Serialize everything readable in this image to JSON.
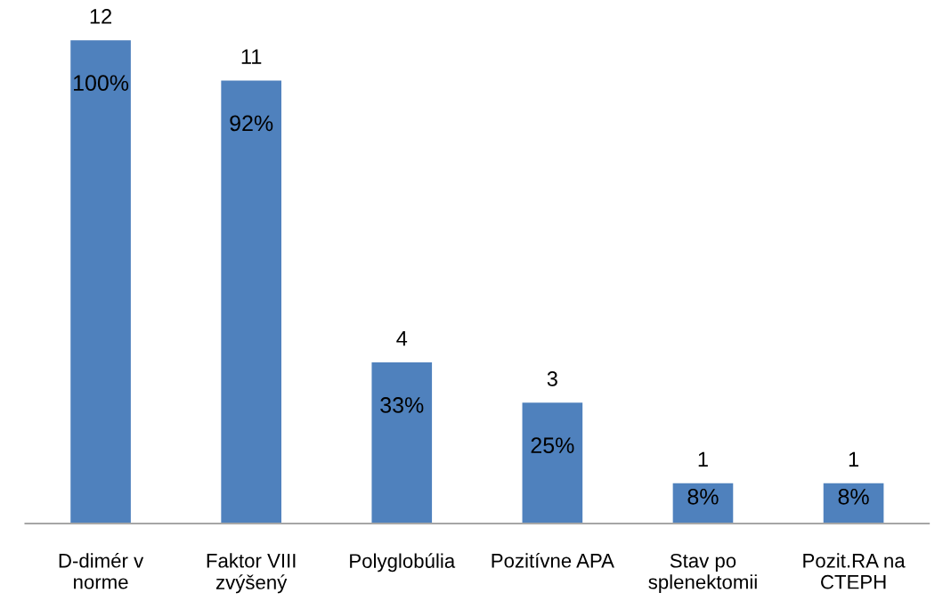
{
  "chart_data": {
    "type": "bar",
    "categories": [
      "D-dimér v\nnorme",
      "Faktor VIII\nzvýšený",
      "Polyglobúlia",
      "Pozitívne APA",
      "Stav po\nsplenektomii",
      "Pozit.RA na\nCTEPH"
    ],
    "values": [
      12,
      11,
      4,
      3,
      1,
      1
    ],
    "color": "#4f81bd",
    "data_labels": true,
    "annotations": [
      {
        "text": "100%",
        "x": "D-dimér v\nnorme",
        "y": 12
      },
      {
        "text": "92%",
        "x": "Faktor VIII\nzvýšený",
        "y": 11
      },
      {
        "text": "33%",
        "x": "Polyglobúlia",
        "y": 4
      },
      {
        "text": "25%",
        "x": "Pozitívne APA",
        "y": 3
      },
      {
        "text": "8%",
        "x": "Stav po\nsplenektomii",
        "y": 1
      },
      {
        "text": "8%",
        "x": "Pozit.RA na\nCTEPH",
        "y": 1
      }
    ]
  }
}
